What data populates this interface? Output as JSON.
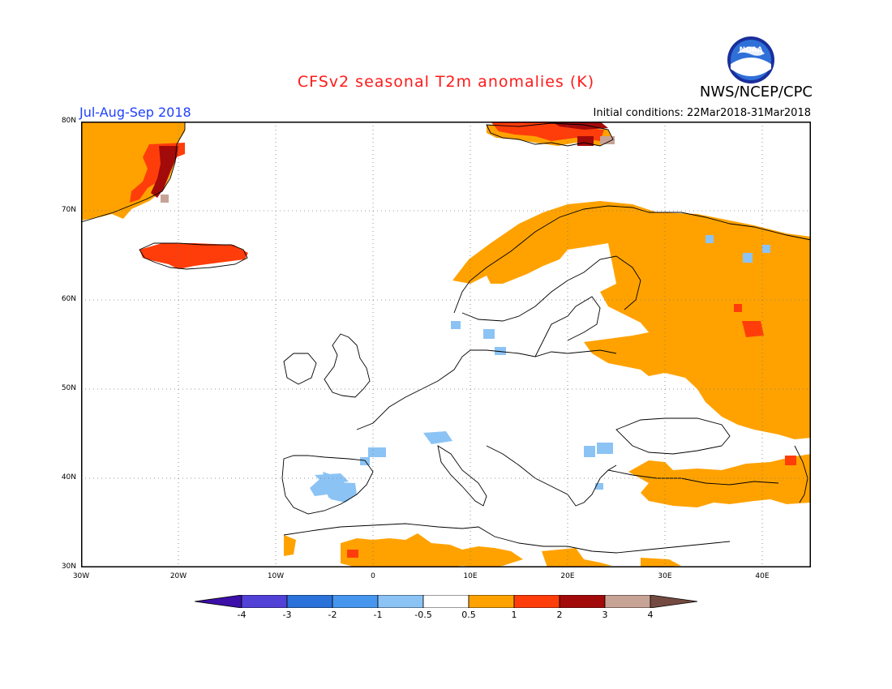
{
  "header": {
    "title": "CFSv2 seasonal T2m anomalies (K)",
    "period": "Jul-Aug-Sep 2018",
    "initial_conditions": "Initial conditions: 22Mar2018-31Mar2018",
    "agency": "NWS/NCEP/CPC",
    "logo_text": "NOAA"
  },
  "map": {
    "lat_labels": [
      "80N",
      "70N",
      "60N",
      "50N",
      "40N",
      "30N"
    ],
    "lon_labels": [
      "30W",
      "20W",
      "10W",
      "0",
      "10E",
      "20E",
      "30E",
      "40E"
    ],
    "grid": "dotted"
  },
  "colorbar": {
    "labels": [
      "-4",
      "-3",
      "-2",
      "-1",
      "-0.5",
      "0.5",
      "1",
      "2",
      "3",
      "4"
    ],
    "colors": [
      "#3b0fa8",
      "#5241d6",
      "#2a72d9",
      "#4696ee",
      "#8cc3f5",
      "#ffffff",
      "#ffa200",
      "#ff3d0b",
      "#a30a0a",
      "#c7a396",
      "#744a40"
    ]
  }
}
